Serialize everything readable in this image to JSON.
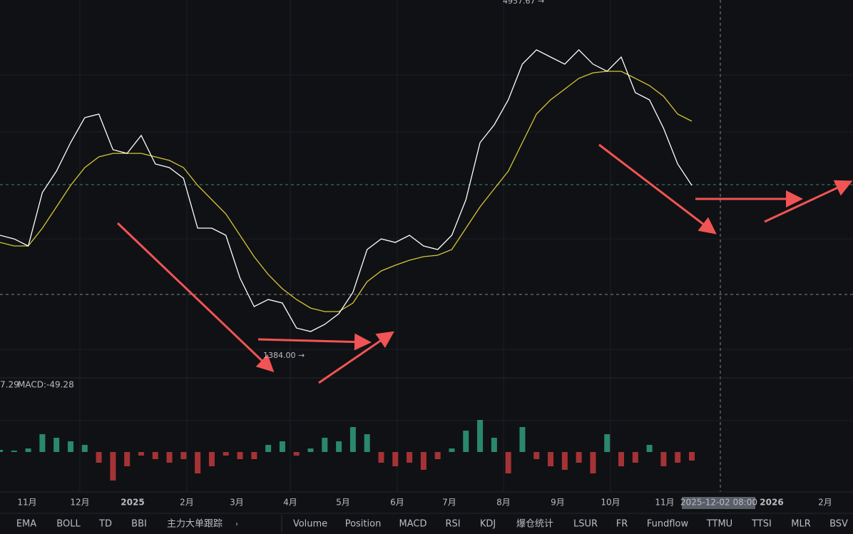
{
  "chart_data": {
    "type": "line",
    "high_label": "4957.67 →",
    "low_label": "1384.00 →",
    "ylim": [
      1130,
      4972
    ],
    "values": [
      2580,
      2543,
      2471,
      3015,
      3232,
      3522,
      3776,
      3812,
      3450,
      3413,
      3595,
      3305,
      3268,
      3160,
      2652,
      2652,
      2580,
      2145,
      1855,
      1927,
      1891,
      1637,
      1601,
      1674,
      1783,
      2000,
      2435,
      2543,
      2507,
      2580,
      2471,
      2435,
      2580,
      2942,
      3522,
      3703,
      3957,
      4320,
      4465,
      4392,
      4320,
      4465,
      4320,
      4247,
      4392,
      4030,
      3957,
      3667,
      3305,
      3087
    ],
    "ema_values": [
      2507,
      2471,
      2471,
      2652,
      2869,
      3087,
      3268,
      3377,
      3413,
      3413,
      3413,
      3377,
      3341,
      3268,
      3087,
      2942,
      2797,
      2580,
      2362,
      2181,
      2036,
      1927,
      1840,
      1804,
      1804,
      1891,
      2108,
      2217,
      2275,
      2326,
      2362,
      2377,
      2435,
      2652,
      2869,
      3051,
      3232,
      3522,
      3812,
      3957,
      4066,
      4175,
      4232,
      4247,
      4247,
      4175,
      4102,
      3993,
      3812,
      3740
    ],
    "macd": {
      "signal_label": "7.29",
      "label": "MACD:-49.28",
      "histogram": [
        3,
        2,
        5,
        25,
        20,
        15,
        10,
        -15,
        -40,
        -20,
        -5,
        -10,
        -15,
        -10,
        -30,
        -20,
        -5,
        -10,
        -10,
        10,
        15,
        -5,
        5,
        20,
        15,
        35,
        25,
        -15,
        -20,
        -15,
        -25,
        -10,
        5,
        30,
        45,
        20,
        -30,
        35,
        -10,
        -20,
        -25,
        -15,
        -30,
        25,
        -20,
        -15,
        10,
        -20,
        -15,
        -12
      ]
    },
    "x_labels": [
      "11月",
      "12月",
      "2025",
      "2月",
      "3月",
      "4月",
      "5月",
      "6月",
      "7月",
      "8月",
      "9月",
      "10月",
      "11月",
      "2025-12-02 08:00",
      "2026",
      "2月"
    ]
  },
  "tabs_left": [
    "EMA",
    "BOLL",
    "TD",
    "BBI",
    "主力大单跟踪"
  ],
  "tabs_right": [
    "Volume",
    "Position",
    "MACD",
    "RSI",
    "KDJ",
    "爆仓统计",
    "LSUR",
    "FR",
    "Fundflow",
    "TTMU",
    "TTSI",
    "MLR",
    "BSV"
  ]
}
